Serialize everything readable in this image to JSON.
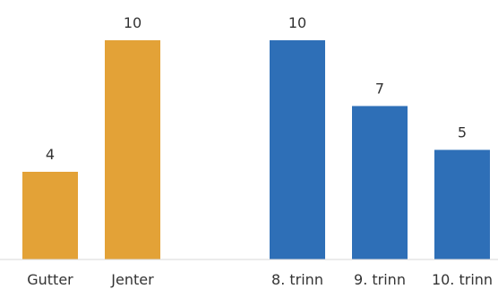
{
  "chart_data": {
    "type": "bar",
    "title": "",
    "xlabel": "",
    "ylabel": "",
    "ylim": [
      0,
      11
    ],
    "grid": false,
    "legend": "none",
    "categories": [
      "Gutter",
      "Jenter",
      "",
      "8. trinn",
      "9. trinn",
      "10. trinn"
    ],
    "bars": [
      {
        "category": "Gutter",
        "value": 4,
        "group": "kjonn",
        "color": "#E3A237"
      },
      {
        "category": "Jenter",
        "value": 10,
        "group": "kjonn",
        "color": "#E3A237"
      },
      {
        "category": "8. trinn",
        "value": 10,
        "group": "trinn",
        "color": "#2E6FB7"
      },
      {
        "category": "9. trinn",
        "value": 7,
        "group": "trinn",
        "color": "#2E6FB7"
      },
      {
        "category": "10. trinn",
        "value": 5,
        "group": "trinn",
        "color": "#2E6FB7"
      }
    ]
  }
}
